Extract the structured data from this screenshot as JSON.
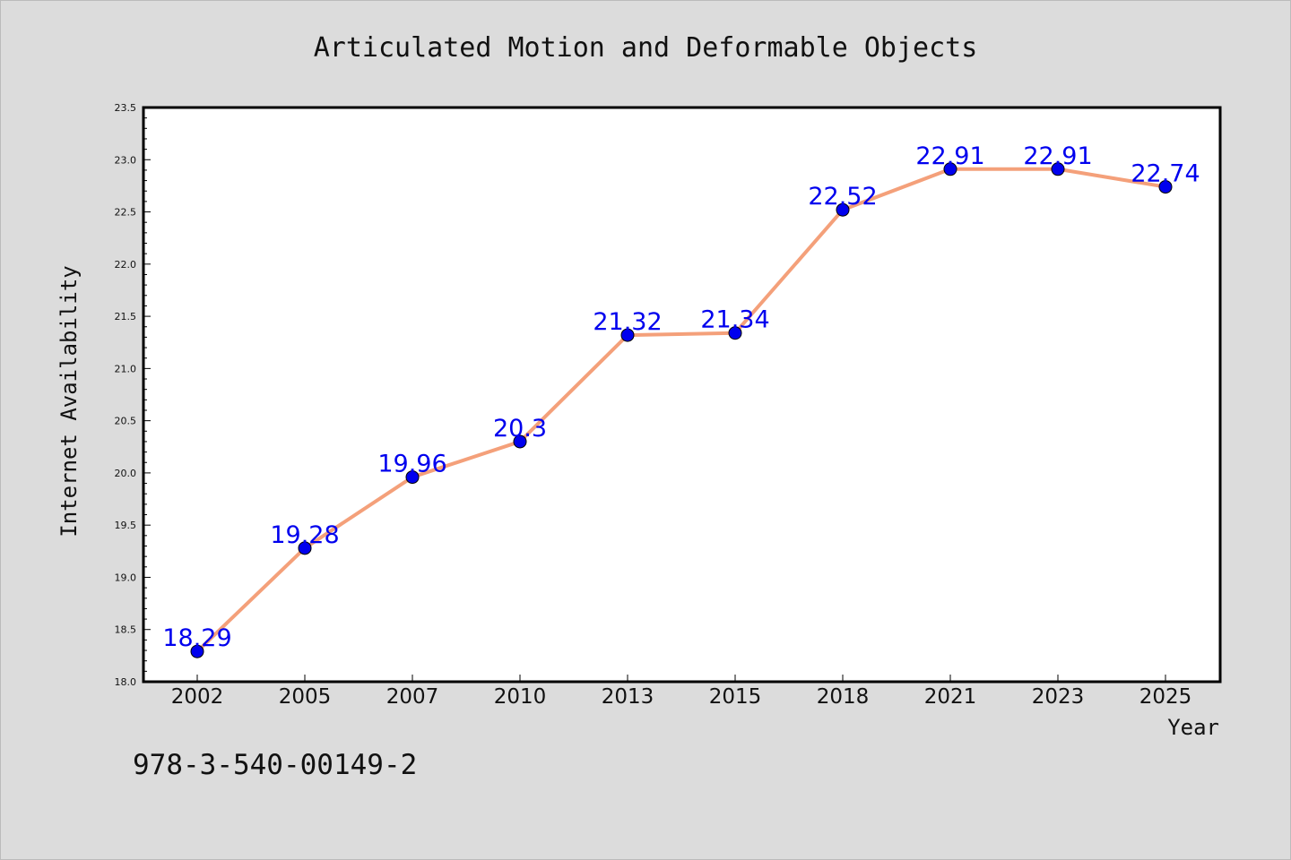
{
  "footer_text": "978-3-540-00149-2",
  "chart_data": {
    "type": "line",
    "title": "Articulated Motion and Deformable Objects",
    "xlabel": "Year",
    "ylabel": "Internet Availability",
    "categories": [
      "2002",
      "2005",
      "2007",
      "2010",
      "2013",
      "2015",
      "2018",
      "2021",
      "2023",
      "2025"
    ],
    "series": [
      {
        "values": [
          18.29,
          19.28,
          19.96,
          20.3,
          21.32,
          21.34,
          22.52,
          22.91,
          22.91,
          22.74
        ],
        "labels": [
          "18.29",
          "19.28",
          "19.96",
          "20.3",
          "21.32",
          "21.34",
          "22.52",
          "22.91",
          "22.91",
          "22.74"
        ],
        "line_color": "#f4a07a",
        "marker_color": "#0000ee",
        "label_color": "#0000ee"
      }
    ],
    "ylim": [
      18.0,
      23.5
    ],
    "yticks": [
      "18.0",
      "18.5",
      "19.0",
      "19.5",
      "20.0",
      "20.5",
      "21.0",
      "21.5",
      "22.0",
      "22.5",
      "23.0",
      "23.5"
    ],
    "grid": false,
    "legend": "none",
    "colors": {
      "background": "#dcdcdc",
      "plot_background": "#ffffff"
    }
  }
}
